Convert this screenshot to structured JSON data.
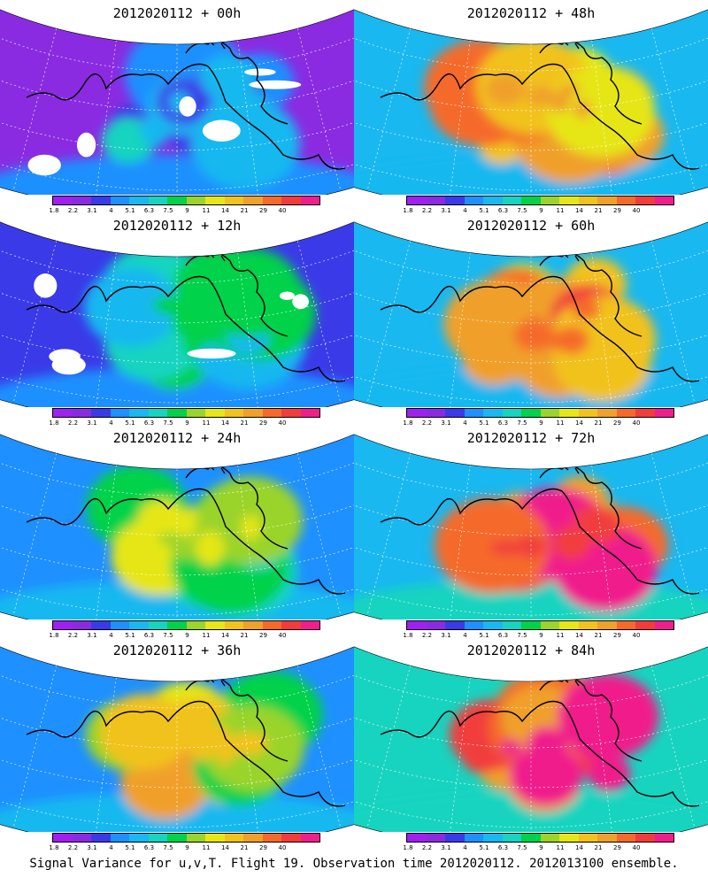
{
  "colors": {
    "palette": [
      "#a020f0",
      "#8a2be2",
      "#3a3ae8",
      "#1e90ff",
      "#19b8f0",
      "#17d4c0",
      "#00d24a",
      "#9ad42c",
      "#e6e619",
      "#f2c21e",
      "#f0a02c",
      "#f56a2a",
      "#f23c3c",
      "#f01e8c"
    ]
  },
  "colorbar_labels": [
    "1.8",
    "2.2",
    "3.1",
    "4",
    "5.1",
    "6.3",
    "7.5",
    "9",
    "11",
    "14",
    "21",
    "29",
    "40"
  ],
  "panels": [
    {
      "title": "2012020112 + 00h",
      "intensity": 0.25
    },
    {
      "title": "2012020112 + 48h",
      "intensity": 0.72
    },
    {
      "title": "2012020112 + 12h",
      "intensity": 0.38
    },
    {
      "title": "2012020112 + 60h",
      "intensity": 0.78
    },
    {
      "title": "2012020112 + 24h",
      "intensity": 0.5
    },
    {
      "title": "2012020112 + 72h",
      "intensity": 0.88
    },
    {
      "title": "2012020112 + 36h",
      "intensity": 0.6
    },
    {
      "title": "2012020112 + 84h",
      "intensity": 0.92
    }
  ],
  "footer": "Signal Variance for u,v,T. Flight 19. Observation time 2012020112. 2012013100 ensemble."
}
